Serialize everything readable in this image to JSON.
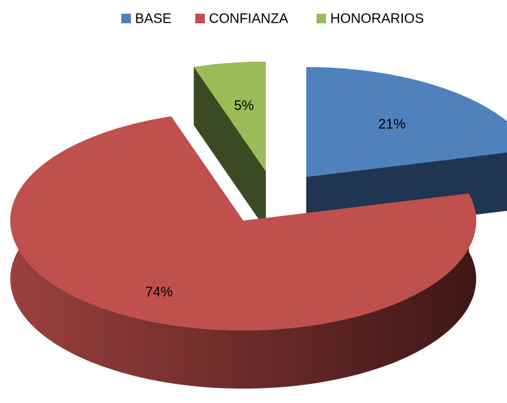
{
  "chart_data": {
    "type": "pie3d",
    "categories": [
      "BASE",
      "CONFIANZA",
      "HONORARIOS"
    ],
    "values": [
      21,
      74,
      5
    ],
    "value_labels": [
      "21%",
      "74%",
      "5%"
    ],
    "colors": [
      "#4f81bd",
      "#c0504d",
      "#9bbb59"
    ],
    "legend": "top"
  }
}
